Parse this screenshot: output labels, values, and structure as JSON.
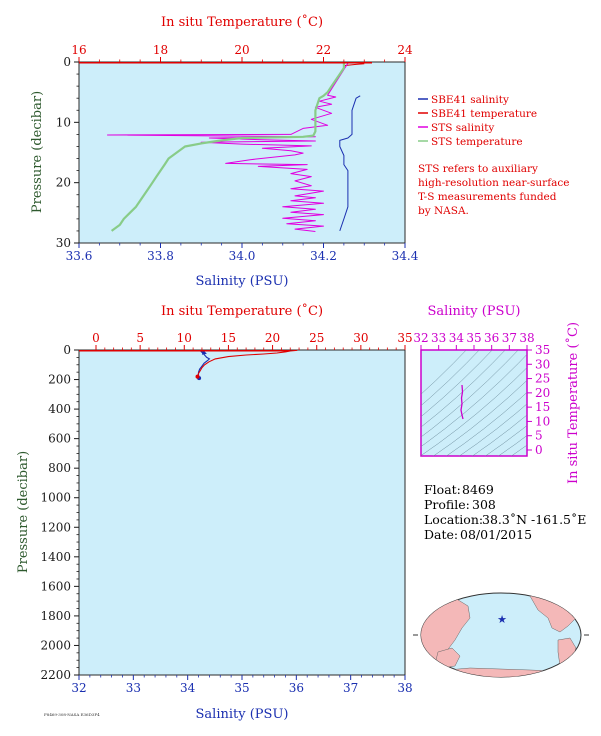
{
  "upper_chart": {
    "top_axis_label": "In situ Temperature (˚C)",
    "top_ticks": [
      "16",
      "18",
      "20",
      "22",
      "24"
    ],
    "bottom_axis_label": "Salinity (PSU)",
    "bottom_ticks": [
      "33.6",
      "33.8",
      "34.0",
      "34.2",
      "34.4"
    ],
    "y_axis_label": "Pressure (decibar)",
    "y_ticks": [
      "0",
      "10",
      "20",
      "30"
    ]
  },
  "lower_chart": {
    "top_axis_label": "In situ Temperature (˚C)",
    "top_ticks": [
      "0",
      "5",
      "10",
      "15",
      "20",
      "25",
      "30",
      "35"
    ],
    "bottom_axis_label": "Salinity (PSU)",
    "bottom_ticks": [
      "32",
      "33",
      "34",
      "35",
      "36",
      "37",
      "38"
    ],
    "y_axis_label": "Pressure (decibar)",
    "y_ticks": [
      "0",
      "200",
      "400",
      "600",
      "800",
      "1000",
      "1200",
      "1400",
      "1600",
      "1800",
      "2000",
      "2200"
    ]
  },
  "ts_chart": {
    "top_axis_label": "Salinity (PSU)",
    "top_ticks": [
      "32",
      "33",
      "34",
      "35",
      "36",
      "37",
      "38"
    ],
    "right_axis_label": "In situ Temperature (˚C)",
    "right_ticks": [
      "0",
      "5",
      "10",
      "15",
      "20",
      "25",
      "30",
      "35"
    ]
  },
  "legend": [
    {
      "label": "SBE41 salinity",
      "color": "#1a2fb0"
    },
    {
      "label": "SBE41 temperature",
      "color": "#e00000"
    },
    {
      "label": "STS salinity",
      "color": "#e000e0"
    },
    {
      "label": "STS temperature",
      "color": "#88cc88"
    }
  ],
  "note_lines": [
    "STS refers to auxiliary",
    "high-resolution near-surface",
    "T-S measurements funded",
    "by NASA."
  ],
  "float_info": {
    "float_label": "Float:",
    "float_value": "8469",
    "profile_label": "Profile:",
    "profile_value": "308",
    "location_label": "Location:",
    "location_value": "38.3˚N  -161.5˚E",
    "date_label": "Date:",
    "date_value": "08/01/2015"
  },
  "footer_text": "F8469-308-NASA E36D3F4",
  "colors": {
    "plot_bg": "#cdeefa",
    "sbe_salinity": "#1a2fb0",
    "sbe_temperature": "#e00000",
    "sts_salinity": "#e000e0",
    "sts_temperature": "#88cc88",
    "land": "#f4b8b8",
    "ocean": "#cdeefa"
  },
  "chart_data": [
    {
      "type": "line",
      "description_axes": "upper near-surface profile",
      "x_salinity_range": [
        33.6,
        34.4
      ],
      "x_temperature_range": [
        16,
        24
      ],
      "y_pressure_range": [
        0,
        30
      ],
      "y_inverted": true,
      "series": [
        {
          "name": "SBE41 salinity",
          "axis": "salinity",
          "points": [
            [
              34.29,
              5.6
            ],
            [
              34.28,
              6.0
            ],
            [
              34.27,
              8.0
            ],
            [
              34.27,
              10.0
            ],
            [
              34.27,
              12.0
            ],
            [
              34.26,
              12.6
            ],
            [
              34.24,
              13.0
            ],
            [
              34.24,
              14.0
            ],
            [
              34.25,
              15.5
            ],
            [
              34.25,
              17.0
            ],
            [
              34.26,
              18.0
            ],
            [
              34.26,
              20.0
            ],
            [
              34.26,
              22.0
            ],
            [
              34.26,
              24.0
            ],
            [
              34.25,
              26.0
            ],
            [
              34.24,
              28.0
            ]
          ]
        },
        {
          "name": "SBE41 temperature",
          "axis": "temperature",
          "points": [
            [
              23.0,
              0.3
            ],
            [
              22.8,
              0.4
            ],
            [
              22.5,
              0.6
            ]
          ]
        },
        {
          "name": "STS salinity",
          "axis": "salinity",
          "points": [
            [
              34.26,
              0.2
            ],
            [
              34.21,
              5.5
            ],
            [
              34.23,
              5.8
            ],
            [
              34.19,
              6.5
            ],
            [
              34.22,
              7.0
            ],
            [
              34.18,
              7.5
            ],
            [
              34.22,
              8.5
            ],
            [
              34.17,
              9.5
            ],
            [
              34.21,
              10.5
            ],
            [
              34.15,
              11.0
            ],
            [
              34.12,
              12.0
            ],
            [
              33.67,
              12.1
            ],
            [
              34.18,
              12.4
            ],
            [
              33.92,
              12.6
            ],
            [
              34.05,
              12.9
            ],
            [
              34.18,
              13.1
            ],
            [
              33.9,
              13.3
            ],
            [
              34.0,
              13.6
            ],
            [
              34.17,
              13.9
            ],
            [
              34.05,
              14.3
            ],
            [
              34.12,
              14.7
            ],
            [
              34.15,
              15.1
            ],
            [
              34.13,
              15.4
            ],
            [
              34.02,
              16.2
            ],
            [
              33.96,
              16.8
            ],
            [
              34.16,
              17.0
            ],
            [
              34.04,
              17.3
            ],
            [
              34.16,
              17.8
            ],
            [
              34.12,
              18.5
            ],
            [
              34.17,
              19.0
            ],
            [
              34.13,
              19.7
            ],
            [
              34.17,
              20.5
            ],
            [
              34.12,
              21.0
            ],
            [
              34.2,
              21.4
            ],
            [
              34.13,
              22.2
            ],
            [
              34.18,
              22.5
            ],
            [
              34.12,
              23.0
            ],
            [
              34.2,
              23.4
            ],
            [
              34.1,
              24.0
            ],
            [
              34.18,
              24.4
            ],
            [
              34.12,
              24.9
            ],
            [
              34.2,
              25.3
            ],
            [
              34.1,
              25.9
            ],
            [
              34.18,
              26.3
            ],
            [
              34.11,
              26.8
            ],
            [
              34.2,
              27.2
            ],
            [
              34.13,
              27.7
            ],
            [
              34.18,
              28.1
            ]
          ]
        },
        {
          "name": "STS temperature",
          "axis": "temperature",
          "points": [
            [
              22.5,
              0.0
            ],
            [
              22.5,
              1.0
            ],
            [
              22.4,
              2.0
            ],
            [
              22.3,
              3.0
            ],
            [
              22.2,
              4.0
            ],
            [
              22.1,
              5.0
            ],
            [
              22.0,
              5.6
            ],
            [
              21.9,
              6.0
            ],
            [
              21.8,
              8.0
            ],
            [
              21.8,
              10.0
            ],
            [
              21.8,
              11.5
            ],
            [
              21.75,
              12.2
            ],
            [
              21.5,
              12.4
            ],
            [
              20.0,
              12.6
            ],
            [
              19.5,
              13.0
            ],
            [
              19.0,
              13.5
            ],
            [
              18.6,
              14.0
            ],
            [
              18.4,
              15.0
            ],
            [
              18.2,
              16.0
            ],
            [
              18.1,
              17.0
            ],
            [
              18.0,
              18.0
            ],
            [
              17.9,
              19.0
            ],
            [
              17.8,
              20.0
            ],
            [
              17.7,
              21.0
            ],
            [
              17.6,
              22.0
            ],
            [
              17.5,
              23.0
            ],
            [
              17.4,
              24.0
            ],
            [
              17.25,
              25.0
            ],
            [
              17.1,
              26.0
            ],
            [
              17.0,
              27.0
            ],
            [
              16.9,
              27.5
            ],
            [
              16.8,
              28.0
            ]
          ]
        }
      ]
    },
    {
      "type": "line",
      "description_axes": "full-depth profile",
      "x_salinity_range": [
        32,
        38
      ],
      "x_temperature_range": [
        0,
        35
      ],
      "y_pressure_range": [
        0,
        2200
      ],
      "y_inverted": true,
      "series": [
        {
          "name": "SBE41 salinity",
          "axis": "salinity",
          "points": [
            [
              34.28,
              5
            ],
            [
              34.25,
              12
            ],
            [
              34.28,
              20
            ],
            [
              34.3,
              30
            ],
            [
              34.35,
              50
            ],
            [
              34.4,
              60
            ],
            [
              34.37,
              70
            ],
            [
              34.3,
              90
            ],
            [
              34.26,
              110
            ],
            [
              34.22,
              130
            ],
            [
              34.2,
              150
            ],
            [
              34.2,
              170
            ],
            [
              34.21,
              190
            ]
          ]
        },
        {
          "name": "SBE41 temperature",
          "axis": "temperature",
          "points": [
            [
              22.8,
              2
            ],
            [
              22.0,
              6
            ],
            [
              21.5,
              12
            ],
            [
              20.5,
              20
            ],
            [
              19.0,
              27
            ],
            [
              17.0,
              34
            ],
            [
              15.0,
              45
            ],
            [
              13.5,
              60
            ],
            [
              12.8,
              80
            ],
            [
              12.3,
              100
            ],
            [
              12.0,
              120
            ],
            [
              11.8,
              140
            ],
            [
              11.6,
              160
            ],
            [
              11.5,
              180
            ]
          ]
        }
      ]
    }
  ]
}
